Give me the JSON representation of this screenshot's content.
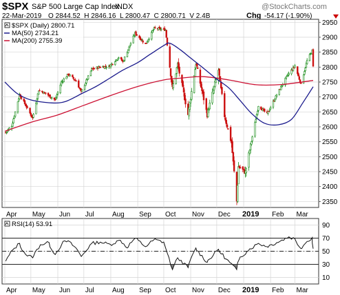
{
  "header": {
    "symbol": "$SPX",
    "name": "S&P 500 Large Cap Index",
    "exchange": "INDX",
    "date": "22-Mar-2019",
    "quote": "O 2844.52  H 2846.16  L 2800.47  C 2800.71  V 2.4B",
    "chg_label": "Chg",
    "chg_value": "-54.17 (-1.90%)",
    "watermark": "@StockCharts.com"
  },
  "legend": {
    "price": "$SPX (Daily) 2800.71",
    "ma50": "MA(50) 2734.21",
    "ma200": "MA(200) 2755.39",
    "rsi": "RSI(14) 53.91"
  },
  "x_axis": {
    "labels": [
      "Apr",
      "May",
      "Jun",
      "Jul",
      "Aug",
      "Sep",
      "Oct",
      "Nov",
      "Dec",
      "2019",
      "Feb",
      "Mar"
    ]
  },
  "colors": {
    "ma50": "#1a1a8c",
    "ma200": "#cc1133",
    "candle_up": "#118811",
    "candle_down": "#cc1111",
    "grid": "#d4d4d4",
    "text": "#000000"
  },
  "chart_data": [
    {
      "type": "candlestick",
      "title": "$SPX (Daily) 2800.71",
      "x_range": [
        "2018-04-01",
        "2019-03-22"
      ],
      "ylim": [
        2330,
        2960
      ],
      "y_ticks": [
        2350,
        2400,
        2450,
        2500,
        2550,
        2600,
        2650,
        2700,
        2750,
        2800,
        2850,
        2900,
        2950
      ],
      "grid": true,
      "legend_position": "top-left",
      "series": [
        {
          "name": "$SPX (Daily) 2800.71",
          "close_path": [
            [
              "2018-04-02",
              2581
            ],
            [
              "2018-04-09",
              2604
            ],
            [
              "2018-04-18",
              2708
            ],
            [
              "2018-04-26",
              2667
            ],
            [
              "2018-05-03",
              2629
            ],
            [
              "2018-05-10",
              2723
            ],
            [
              "2018-05-18",
              2712
            ],
            [
              "2018-05-29",
              2690
            ],
            [
              "2018-06-05",
              2749
            ],
            [
              "2018-06-13",
              2776
            ],
            [
              "2018-06-22",
              2754
            ],
            [
              "2018-06-28",
              2716
            ],
            [
              "2018-07-10",
              2793
            ],
            [
              "2018-07-20",
              2801
            ],
            [
              "2018-07-30",
              2802
            ],
            [
              "2018-08-10",
              2833
            ],
            [
              "2018-08-15",
              2818
            ],
            [
              "2018-08-29",
              2914
            ],
            [
              "2018-09-10",
              2877
            ],
            [
              "2018-09-20",
              2930
            ],
            [
              "2018-10-03",
              2925
            ],
            [
              "2018-10-11",
              2728
            ],
            [
              "2018-10-17",
              2809
            ],
            [
              "2018-10-29",
              2641
            ],
            [
              "2018-11-07",
              2813
            ],
            [
              "2018-11-20",
              2641
            ],
            [
              "2018-12-03",
              2790
            ],
            [
              "2018-12-10",
              2637
            ],
            [
              "2018-12-18",
              2546
            ],
            [
              "2018-12-24",
              2351
            ],
            [
              "2018-12-26",
              2467
            ],
            [
              "2019-01-03",
              2448
            ],
            [
              "2019-01-18",
              2671
            ],
            [
              "2019-01-28",
              2643
            ],
            [
              "2019-02-08",
              2707
            ],
            [
              "2019-02-21",
              2775
            ],
            [
              "2019-03-01",
              2804
            ],
            [
              "2019-03-08",
              2743
            ],
            [
              "2019-03-15",
              2822
            ],
            [
              "2019-03-21",
              2855
            ],
            [
              "2019-03-22",
              2801
            ]
          ]
        },
        {
          "name": "MA(50) 2734.21",
          "values": [
            [
              "2018-04-01",
              2750
            ],
            [
              "2018-04-15",
              2712
            ],
            [
              "2018-05-01",
              2690
            ],
            [
              "2018-05-25",
              2680
            ],
            [
              "2018-06-10",
              2685
            ],
            [
              "2018-06-29",
              2712
            ],
            [
              "2018-07-15",
              2735
            ],
            [
              "2018-08-01",
              2765
            ],
            [
              "2018-08-15",
              2790
            ],
            [
              "2018-09-01",
              2815
            ],
            [
              "2018-09-15",
              2842
            ],
            [
              "2018-10-01",
              2872
            ],
            [
              "2018-10-08",
              2880
            ],
            [
              "2018-10-20",
              2858
            ],
            [
              "2018-11-01",
              2830
            ],
            [
              "2018-11-15",
              2798
            ],
            [
              "2018-12-01",
              2760
            ],
            [
              "2018-12-15",
              2730
            ],
            [
              "2018-12-28",
              2688
            ],
            [
              "2019-01-10",
              2645
            ],
            [
              "2019-01-25",
              2612
            ],
            [
              "2019-02-10",
              2607
            ],
            [
              "2019-02-25",
              2625
            ],
            [
              "2019-03-10",
              2680
            ],
            [
              "2019-03-22",
              2734.21
            ]
          ]
        },
        {
          "name": "MA(200) 2755.39",
          "values": [
            [
              "2018-04-01",
              2585
            ],
            [
              "2018-05-01",
              2615
            ],
            [
              "2018-06-01",
              2640
            ],
            [
              "2018-07-01",
              2672
            ],
            [
              "2018-08-01",
              2705
            ],
            [
              "2018-09-01",
              2735
            ],
            [
              "2018-10-01",
              2757
            ],
            [
              "2018-10-20",
              2763
            ],
            [
              "2018-11-15",
              2768
            ],
            [
              "2018-12-15",
              2757
            ],
            [
              "2019-01-15",
              2741
            ],
            [
              "2019-02-15",
              2742
            ],
            [
              "2019-03-22",
              2755.39
            ]
          ]
        }
      ]
    },
    {
      "type": "line",
      "title": "RSI(14) 53.91",
      "ylim": [
        0,
        100
      ],
      "y_ticks": [
        10,
        30,
        50,
        70,
        90
      ],
      "reference_lines": [
        30,
        50,
        70
      ],
      "grid": true,
      "series": [
        {
          "name": "RSI(14) 53.91",
          "values": [
            [
              "2018-04-02",
              35
            ],
            [
              "2018-04-10",
              52
            ],
            [
              "2018-04-18",
              62
            ],
            [
              "2018-04-25",
              45
            ],
            [
              "2018-05-03",
              40
            ],
            [
              "2018-05-12",
              60
            ],
            [
              "2018-05-22",
              63
            ],
            [
              "2018-05-29",
              45
            ],
            [
              "2018-06-06",
              62
            ],
            [
              "2018-06-13",
              66
            ],
            [
              "2018-06-22",
              55
            ],
            [
              "2018-06-28",
              42
            ],
            [
              "2018-07-10",
              62
            ],
            [
              "2018-07-20",
              64
            ],
            [
              "2018-08-01",
              60
            ],
            [
              "2018-08-12",
              67
            ],
            [
              "2018-08-20",
              55
            ],
            [
              "2018-08-29",
              70
            ],
            [
              "2018-09-10",
              57
            ],
            [
              "2018-09-20",
              68
            ],
            [
              "2018-10-01",
              64
            ],
            [
              "2018-10-11",
              22
            ],
            [
              "2018-10-17",
              40
            ],
            [
              "2018-10-29",
              25
            ],
            [
              "2018-11-07",
              55
            ],
            [
              "2018-11-20",
              33
            ],
            [
              "2018-12-03",
              53
            ],
            [
              "2018-12-12",
              38
            ],
            [
              "2018-12-24",
              22
            ],
            [
              "2018-12-27",
              38
            ],
            [
              "2019-01-05",
              50
            ],
            [
              "2019-01-18",
              62
            ],
            [
              "2019-01-28",
              57
            ],
            [
              "2019-02-08",
              63
            ],
            [
              "2019-02-22",
              72
            ],
            [
              "2019-03-01",
              69
            ],
            [
              "2019-03-08",
              54
            ],
            [
              "2019-03-15",
              65
            ],
            [
              "2019-03-21",
              71
            ],
            [
              "2019-03-22",
              53.91
            ]
          ]
        }
      ]
    }
  ]
}
